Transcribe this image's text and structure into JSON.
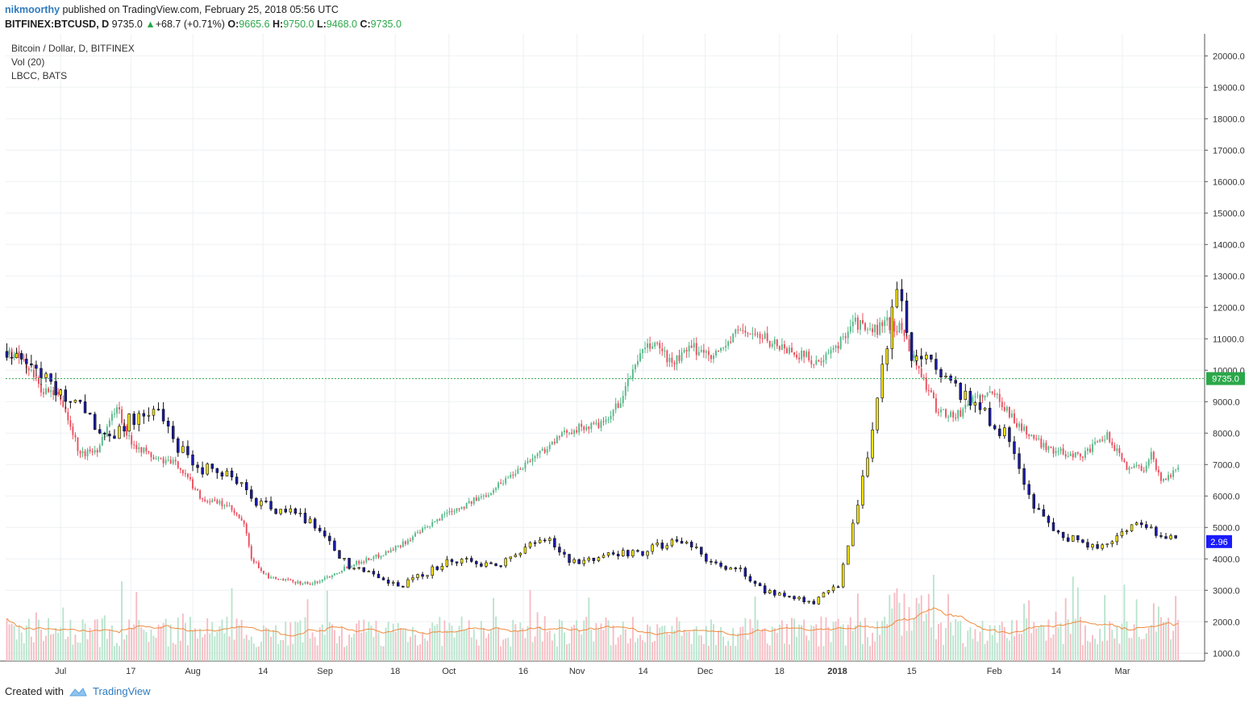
{
  "header": {
    "user": "nikmoorthy",
    "published": "published on TradingView.com, February 25, 2018 05:56 UTC",
    "symbol": "BITFINEX:BTCUSD, D",
    "last": "9735.0",
    "arrow": "▲",
    "change": "+68.7 (+0.71%)",
    "o_label": "O:",
    "o": "9665.6",
    "h_label": "H:",
    "h": "9750.0",
    "l_label": "L:",
    "l": "9468.0",
    "c_label": "C:",
    "c": "9735.0"
  },
  "legend": {
    "main": "Bitcoin / Dollar, D, BITFINEX",
    "vol": "Vol (20)",
    "overlay": "LBCC, BATS"
  },
  "footer": {
    "created": "Created with",
    "brand": "TradingView"
  },
  "colors": {
    "up": "#53b987",
    "down": "#eb4d5c",
    "vol_up": "#b9e4cd",
    "vol_down": "#f7bcc3",
    "overlay_up": "#f6e40c",
    "overlay_down": "#1a1aa8",
    "ma": "#f08a3c",
    "last": "#2ba84a",
    "overlay_tag": "#1a1aff"
  },
  "chart_data": {
    "type": "candlestick",
    "y_axis": {
      "ticks": [
        1000,
        2000,
        3000,
        4000,
        5000,
        6000,
        7000,
        8000,
        9000,
        10000,
        11000,
        12000,
        13000,
        14000,
        15000,
        16000,
        17000,
        18000,
        19000,
        20000
      ],
      "tick_labels": [
        "1000.0",
        "2000.0",
        "3000.0",
        "4000.0",
        "5000.0",
        "6000.0",
        "7000.0",
        "8000.0",
        "9000.0",
        "10000.0",
        "11000.0",
        "12000.0",
        "13000.0",
        "14000.0",
        "15000.0",
        "16000.0",
        "17000.0",
        "18000.0",
        "19000.0",
        "20000.0"
      ],
      "range": [
        750,
        20700
      ]
    },
    "x_axis": {
      "labels": [
        "Jul",
        "17",
        "Aug",
        "14",
        "Sep",
        "18",
        "Oct",
        "16",
        "Nov",
        "14",
        "Dec",
        "18",
        "2018",
        "15",
        "Feb",
        "14",
        "Mar"
      ],
      "label_days": [
        13,
        30,
        45,
        62,
        77,
        94,
        107,
        125,
        138,
        154,
        169,
        187,
        201,
        219,
        239,
        254,
        270
      ]
    },
    "last_price": {
      "value": 9735,
      "label": "9735.0"
    },
    "overlay_last": {
      "value": 4550,
      "label": "2.96"
    },
    "btc_points": [
      [
        0,
        10600
      ],
      [
        7,
        10300
      ],
      [
        14,
        9400
      ],
      [
        22,
        9100
      ],
      [
        30,
        7300
      ],
      [
        37,
        7500
      ],
      [
        45,
        8900
      ],
      [
        50,
        7800
      ],
      [
        60,
        7200
      ],
      [
        70,
        7000
      ],
      [
        80,
        5900
      ],
      [
        90,
        5700
      ],
      [
        97,
        5100
      ],
      [
        100,
        4000
      ],
      [
        107,
        3400
      ],
      [
        115,
        3300
      ],
      [
        125,
        3200
      ],
      [
        133,
        3500
      ],
      [
        140,
        3800
      ],
      [
        152,
        4100
      ],
      [
        160,
        4400
      ],
      [
        168,
        4800
      ],
      [
        174,
        5100
      ],
      [
        180,
        5500
      ],
      [
        187,
        5700
      ],
      [
        195,
        6000
      ],
      [
        205,
        6600
      ],
      [
        213,
        7100
      ],
      [
        220,
        7500
      ],
      [
        230,
        8100
      ],
      [
        245,
        8300
      ],
      [
        252,
        9200
      ],
      [
        258,
        10400
      ],
      [
        265,
        10900
      ],
      [
        272,
        10200
      ],
      [
        280,
        10700
      ],
      [
        290,
        10500
      ],
      [
        300,
        11300
      ],
      [
        310,
        11000
      ],
      [
        318,
        10700
      ],
      [
        326,
        10450
      ],
      [
        333,
        10200
      ],
      [
        340,
        10800
      ],
      [
        346,
        11600
      ],
      [
        353,
        11200
      ],
      [
        360,
        11500
      ],
      [
        366,
        11300
      ],
      [
        372,
        10200
      ],
      [
        380,
        8800
      ],
      [
        388,
        8500
      ],
      [
        396,
        9200
      ],
      [
        405,
        9200
      ],
      [
        413,
        8300
      ],
      [
        422,
        7700
      ],
      [
        430,
        7400
      ],
      [
        440,
        7300
      ],
      [
        450,
        7900
      ],
      [
        458,
        6950
      ],
      [
        465,
        6900
      ],
      [
        468,
        7300
      ],
      [
        472,
        6500
      ],
      [
        478,
        6800
      ]
    ],
    "overlay_points": [
      [
        0,
        10600
      ],
      [
        10,
        10300
      ],
      [
        20,
        9300
      ],
      [
        30,
        9000
      ],
      [
        40,
        7800
      ],
      [
        50,
        8400
      ],
      [
        60,
        8800
      ],
      [
        70,
        7600
      ],
      [
        80,
        6900
      ],
      [
        90,
        6800
      ],
      [
        100,
        5900
      ],
      [
        110,
        5600
      ],
      [
        120,
        5400
      ],
      [
        130,
        4800
      ],
      [
        140,
        3700
      ],
      [
        150,
        3600
      ],
      [
        160,
        3100
      ],
      [
        170,
        3500
      ],
      [
        180,
        3900
      ],
      [
        190,
        3900
      ],
      [
        200,
        3800
      ],
      [
        210,
        4200
      ],
      [
        220,
        4700
      ],
      [
        230,
        4000
      ],
      [
        240,
        3900
      ],
      [
        250,
        4200
      ],
      [
        260,
        4200
      ],
      [
        270,
        4500
      ],
      [
        280,
        4400
      ],
      [
        290,
        3800
      ],
      [
        300,
        3600
      ],
      [
        310,
        3000
      ],
      [
        320,
        2800
      ],
      [
        330,
        2600
      ],
      [
        340,
        3200
      ],
      [
        350,
        6500
      ],
      [
        360,
        11000
      ],
      [
        365,
        13000
      ],
      [
        370,
        10500
      ],
      [
        380,
        10000
      ],
      [
        390,
        9200
      ],
      [
        400,
        8600
      ],
      [
        410,
        7800
      ],
      [
        420,
        5600
      ],
      [
        430,
        4800
      ],
      [
        440,
        4500
      ],
      [
        450,
        4400
      ],
      [
        460,
        5200
      ],
      [
        470,
        4800
      ],
      [
        478,
        4550
      ]
    ],
    "series": [
      {
        "name": "BITFINEX:BTCUSD"
      },
      {
        "name": "Vol (20)"
      },
      {
        "name": "LBCC, BATS"
      }
    ]
  }
}
